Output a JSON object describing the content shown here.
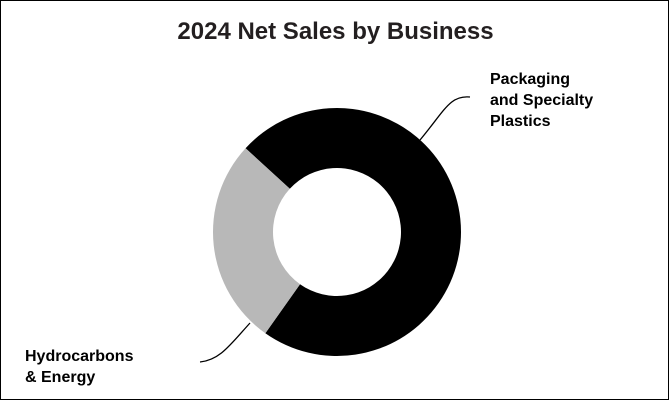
{
  "chart_data": {
    "type": "pie",
    "title": "2024 Net Sales by Business",
    "donut": true,
    "legend": "none",
    "slices": [
      {
        "label": "Packaging and Specialty Plastics",
        "value": 73,
        "color": "#000000"
      },
      {
        "label": "Hydrocarbons & Energy",
        "value": 27,
        "color": "#b8b8b8"
      }
    ]
  },
  "labels": {
    "packaging": "Packaging\nand Specialty\nPlastics",
    "hydro": "Hydrocarbons\n& Energy"
  }
}
